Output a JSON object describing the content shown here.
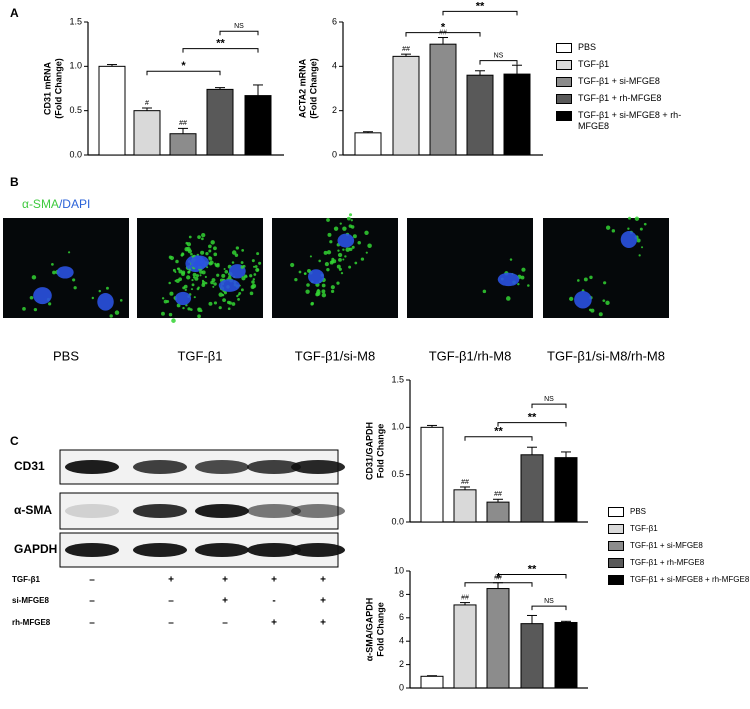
{
  "panels": [
    "A",
    "B",
    "C"
  ],
  "chart_data": [
    {
      "type": "bar",
      "y_label": [
        "CD31 mRNA",
        "(Fold Change)"
      ],
      "colors": [
        "#ffffff",
        "#d9d9d9",
        "#8c8c8c",
        "#595959",
        "#000000"
      ],
      "values": [
        1.0,
        0.5,
        0.24,
        0.74,
        0.67
      ],
      "errors": [
        0.02,
        0.03,
        0.06,
        0.02,
        0.12
      ],
      "bar_marks": [
        null,
        "#",
        "##",
        null,
        null
      ],
      "annotations": [
        "*",
        "**",
        "NS"
      ],
      "ylim": [
        0,
        1.5
      ],
      "yticks": [
        {
          "value": 0,
          "label": "0.0"
        },
        {
          "value": 0.5,
          "label": "0.5"
        },
        {
          "value": 1,
          "label": "1.0"
        },
        {
          "value": 1.5,
          "label": "1.5"
        }
      ]
    },
    {
      "type": "bar",
      "y_label": [
        "ACTA2 mRNA",
        "(Fold Change)"
      ],
      "categories": [
        "PBS",
        "TGF-β1",
        "TGF-β1 + si-MFGE8",
        "TGF-β1 + rh-MFGE8",
        "TGF-β1 + si-MFGE8 + rh-MFGE8"
      ],
      "colors": [
        "#ffffff",
        "#d9d9d9",
        "#8c8c8c",
        "#595959",
        "#000000"
      ],
      "values": [
        1.0,
        4.45,
        5.0,
        3.6,
        3.65
      ],
      "errors": [
        0.05,
        0.1,
        0.3,
        0.2,
        0.4
      ],
      "bar_marks": [
        null,
        "##",
        "##",
        null,
        null
      ],
      "annotations": [
        "*",
        "**",
        "NS"
      ],
      "ylim": [
        0,
        6
      ],
      "yticks": [
        0,
        2,
        4,
        6
      ]
    },
    {
      "type": "bar",
      "y_label": [
        "CD31/GAPDH",
        "Fold Change"
      ],
      "categories": [
        "PBS",
        "TGF-β1",
        "TGF-β1 + si-MFGE8",
        "TGF-β1 + rh-MFGE8",
        "TGF-β1 + si-MFGE8 + rh-MFGE8"
      ],
      "colors": [
        "#ffffff",
        "#d9d9d9",
        "#8c8c8c",
        "#595959",
        "#000000"
      ],
      "values": [
        1.0,
        0.34,
        0.21,
        0.71,
        0.68
      ],
      "errors": [
        0.02,
        0.03,
        0.03,
        0.08,
        0.06
      ],
      "bar_marks": [
        null,
        "##",
        "##",
        null,
        null
      ],
      "annotations": [
        "**",
        "**",
        "NS"
      ],
      "ylim": [
        0,
        1.5
      ],
      "yticks": [
        {
          "value": 0,
          "label": "0.0"
        },
        {
          "value": 0.5,
          "label": "0.5"
        },
        {
          "value": 1,
          "label": "1.0"
        },
        {
          "value": 1.5,
          "label": "1.5"
        }
      ]
    },
    {
      "type": "bar",
      "y_label": [
        "α-SMA/GAPDH",
        "Fold Change"
      ],
      "colors": [
        "#ffffff",
        "#d9d9d9",
        "#8c8c8c",
        "#595959",
        "#000000"
      ],
      "values": [
        1.0,
        7.1,
        8.5,
        5.5,
        5.6
      ],
      "errors": [
        0.05,
        0.2,
        0.5,
        0.7,
        0.1
      ],
      "bar_marks": [
        null,
        "##",
        "##",
        null,
        null
      ],
      "annotations": [
        "*",
        "**",
        "NS"
      ],
      "ylim": [
        0,
        10
      ],
      "yticks": [
        0,
        2,
        4,
        6,
        8,
        10
      ]
    }
  ],
  "images": {
    "stain": [
      "α-SMA",
      "/DAPI"
    ],
    "labels": [
      "PBS",
      "TGF-β1",
      "TGF-β1/si-M8",
      "TGF-β1/rh-M8",
      "TGF-β1/si-M8/rh-M8"
    ]
  },
  "blot": {
    "rows": [
      "CD31",
      "α-SMA",
      "GAPDH"
    ],
    "treatments": [
      {
        "name": "TGF-β1",
        "signs": [
          "–",
          "+",
          "+",
          "+",
          "+"
        ]
      },
      {
        "name": "si-MFGE8",
        "signs": [
          "–",
          "–",
          "+",
          "-",
          "+"
        ]
      },
      {
        "name": "rh-MFGE8",
        "signs": [
          "–",
          "–",
          "–",
          "+",
          "+"
        ]
      }
    ]
  }
}
